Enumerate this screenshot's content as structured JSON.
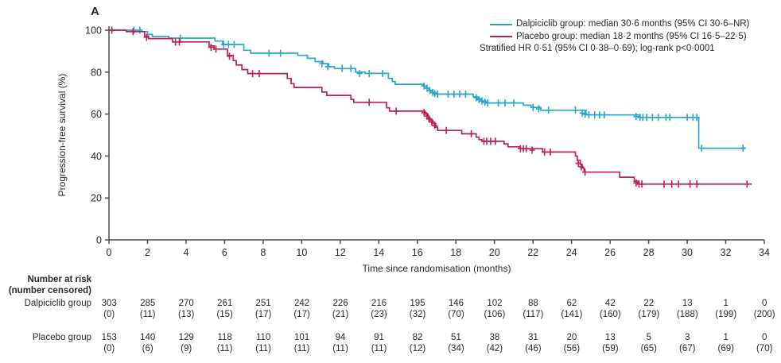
{
  "panel_label": "A",
  "colors": {
    "dalpiciclib": "#29A7C8",
    "placebo": "#BE2056",
    "axis": "#4D4D4F",
    "text": "#2B2A29"
  },
  "legend": {
    "entries": [
      {
        "label": "Dalpiciclib group: median 30·6 months (95% CI 30·6–NR)",
        "color_key": "dalpiciclib"
      },
      {
        "label": "Placebo group: median 18·2 months (95% CI 16·5–22·5)",
        "color_key": "placebo"
      }
    ],
    "note": "Stratified HR 0·51 (95% CI 0·38–0·69); log-rank p<0·0001"
  },
  "chart_data": {
    "type": "line",
    "subtype": "kaplan-meier-step",
    "title": "",
    "xlabel": "Time since randomisation (months)",
    "ylabel": "Progression-free survival (%)",
    "xlim": [
      0,
      34
    ],
    "xticks": [
      0,
      2,
      4,
      6,
      8,
      10,
      12,
      14,
      16,
      18,
      20,
      22,
      24,
      26,
      28,
      30,
      32,
      34
    ],
    "ylim": [
      0,
      100
    ],
    "yticks": [
      0,
      20,
      40,
      60,
      80,
      100
    ],
    "grid": false,
    "legend_position": "top-right",
    "series": [
      {
        "name": "Dalpiciclib group",
        "color": "#29A7C8",
        "median_months": "30·6",
        "steps": [
          [
            0,
            100
          ],
          [
            1.7,
            99.3
          ],
          [
            2.0,
            98
          ],
          [
            2.25,
            97
          ],
          [
            3.1,
            96.2
          ],
          [
            5.5,
            94.8
          ],
          [
            5.9,
            93.2
          ],
          [
            7.0,
            90.4
          ],
          [
            7.35,
            89
          ],
          [
            9.8,
            88
          ],
          [
            10.3,
            86.6
          ],
          [
            10.7,
            85
          ],
          [
            11.1,
            84
          ],
          [
            11.4,
            82.6
          ],
          [
            11.7,
            81.7
          ],
          [
            12.8,
            80
          ],
          [
            13.3,
            79.4
          ],
          [
            14.5,
            77
          ],
          [
            14.7,
            75.5
          ],
          [
            14.85,
            74.2
          ],
          [
            16.3,
            73.4
          ],
          [
            16.45,
            72.3
          ],
          [
            16.6,
            71.2
          ],
          [
            16.75,
            70.3
          ],
          [
            16.95,
            69.5
          ],
          [
            18.9,
            68.3
          ],
          [
            19.1,
            67.3
          ],
          [
            19.3,
            66.2
          ],
          [
            19.55,
            65.3
          ],
          [
            21.5,
            64.2
          ],
          [
            21.9,
            63.2
          ],
          [
            22.4,
            61.8
          ],
          [
            24.75,
            59.6
          ],
          [
            27.5,
            58.4
          ],
          [
            30.6,
            43.7
          ]
        ],
        "end": 33.05,
        "censors": [
          [
            1.3,
            100
          ],
          [
            1.6,
            100
          ],
          [
            3.7,
            96.2
          ],
          [
            5.95,
            93.2
          ],
          [
            6.2,
            93.2
          ],
          [
            6.5,
            93.2
          ],
          [
            8.3,
            89
          ],
          [
            8.9,
            89
          ],
          [
            11.05,
            84
          ],
          [
            11.35,
            82.6
          ],
          [
            12.1,
            81.7
          ],
          [
            12.55,
            81.7
          ],
          [
            13.0,
            79.4
          ],
          [
            13.5,
            79.4
          ],
          [
            14.2,
            79.4
          ],
          [
            16.35,
            73.4
          ],
          [
            16.5,
            72.3
          ],
          [
            16.65,
            71.2
          ],
          [
            16.8,
            70.3
          ],
          [
            16.9,
            69.8
          ],
          [
            17.05,
            69.5
          ],
          [
            17.6,
            69.5
          ],
          [
            17.9,
            69.5
          ],
          [
            18.2,
            69.5
          ],
          [
            18.5,
            69.5
          ],
          [
            19.05,
            67.8
          ],
          [
            19.2,
            66.8
          ],
          [
            19.35,
            66.2
          ],
          [
            19.5,
            65.6
          ],
          [
            19.65,
            65.3
          ],
          [
            20.2,
            65.3
          ],
          [
            20.55,
            65.3
          ],
          [
            21.0,
            65.3
          ],
          [
            22.0,
            63.2
          ],
          [
            22.3,
            62.5
          ],
          [
            22.8,
            61.8
          ],
          [
            24.2,
            61.8
          ],
          [
            24.55,
            60.5
          ],
          [
            24.7,
            59.9
          ],
          [
            24.9,
            59.6
          ],
          [
            25.2,
            59.6
          ],
          [
            25.45,
            59.6
          ],
          [
            25.7,
            59.6
          ],
          [
            27.35,
            58.8
          ],
          [
            27.55,
            58.4
          ],
          [
            27.7,
            58.4
          ],
          [
            27.9,
            58.4
          ],
          [
            28.2,
            58.4
          ],
          [
            28.5,
            58.4
          ],
          [
            28.9,
            58.4
          ],
          [
            29.1,
            58.4
          ],
          [
            30.0,
            58.4
          ],
          [
            30.3,
            58.4
          ],
          [
            30.5,
            58.4
          ],
          [
            30.75,
            43.7
          ],
          [
            32.9,
            43.7
          ]
        ]
      },
      {
        "name": "Placebo group",
        "color": "#BE2056",
        "median_months": "18·2",
        "steps": [
          [
            0,
            100
          ],
          [
            0.9,
            99.3
          ],
          [
            1.85,
            97.2
          ],
          [
            2.05,
            96
          ],
          [
            3.3,
            94.4
          ],
          [
            5.2,
            92.5
          ],
          [
            5.45,
            91
          ],
          [
            6.15,
            88
          ],
          [
            6.45,
            85.5
          ],
          [
            6.6,
            83.4
          ],
          [
            6.9,
            81.2
          ],
          [
            7.2,
            79.3
          ],
          [
            9.25,
            77
          ],
          [
            9.45,
            74.5
          ],
          [
            9.6,
            72.7
          ],
          [
            11.05,
            70.5
          ],
          [
            11.3,
            68.9
          ],
          [
            12.55,
            67
          ],
          [
            12.7,
            65.6
          ],
          [
            14.4,
            63
          ],
          [
            14.55,
            61.4
          ],
          [
            16.4,
            60
          ],
          [
            16.55,
            58.5
          ],
          [
            16.65,
            57
          ],
          [
            16.8,
            55.5
          ],
          [
            16.95,
            53.8
          ],
          [
            17.05,
            52.2
          ],
          [
            18.3,
            50.6
          ],
          [
            19.05,
            49
          ],
          [
            19.2,
            47.8
          ],
          [
            19.35,
            47
          ],
          [
            20.5,
            45.8
          ],
          [
            20.7,
            44.4
          ],
          [
            21.3,
            43.5
          ],
          [
            22.5,
            41.9
          ],
          [
            24.2,
            40
          ],
          [
            24.3,
            38
          ],
          [
            24.45,
            36
          ],
          [
            24.55,
            34.3
          ],
          [
            24.65,
            32.3
          ],
          [
            26.5,
            29.9
          ],
          [
            27.25,
            28
          ],
          [
            27.45,
            26.6
          ]
        ],
        "end": 33.35,
        "censors": [
          [
            0.15,
            100
          ],
          [
            1.25,
            99.3
          ],
          [
            1.95,
            96.6
          ],
          [
            3.45,
            94.4
          ],
          [
            3.65,
            94.4
          ],
          [
            5.3,
            91.8
          ],
          [
            5.55,
            91
          ],
          [
            6.25,
            87.6
          ],
          [
            7.45,
            79.3
          ],
          [
            7.8,
            79.3
          ],
          [
            13.5,
            65.6
          ],
          [
            14.9,
            61.4
          ],
          [
            16.35,
            60.7
          ],
          [
            16.5,
            59
          ],
          [
            16.6,
            57.7
          ],
          [
            16.75,
            56.2
          ],
          [
            16.9,
            54.6
          ],
          [
            17.5,
            52.2
          ],
          [
            18.8,
            50.6
          ],
          [
            19.45,
            47
          ],
          [
            19.6,
            47
          ],
          [
            19.8,
            47
          ],
          [
            20.05,
            47
          ],
          [
            21.35,
            43.5
          ],
          [
            21.5,
            43.5
          ],
          [
            21.65,
            43.5
          ],
          [
            21.95,
            42.8
          ],
          [
            22.6,
            41.9
          ],
          [
            22.9,
            41.9
          ],
          [
            24.35,
            36.5
          ],
          [
            24.5,
            34.8
          ],
          [
            24.7,
            32.3
          ],
          [
            27.35,
            27.2
          ],
          [
            27.5,
            26.6
          ],
          [
            27.65,
            26.6
          ],
          [
            28.8,
            26.6
          ],
          [
            29.2,
            26.6
          ],
          [
            29.55,
            26.6
          ],
          [
            30.15,
            26.6
          ],
          [
            30.5,
            26.6
          ],
          [
            33.1,
            26.6
          ]
        ]
      }
    ]
  },
  "risk_table": {
    "header_line1": "Number at risk",
    "header_line2": "(number censored)",
    "months": [
      0,
      2,
      4,
      6,
      8,
      10,
      12,
      14,
      16,
      18,
      20,
      22,
      24,
      26,
      28,
      30,
      32,
      34
    ],
    "rows": [
      {
        "label": "Dalpiciclib group",
        "at_risk": [
          303,
          285,
          270,
          261,
          251,
          242,
          226,
          216,
          195,
          146,
          102,
          88,
          62,
          42,
          22,
          13,
          1,
          0
        ],
        "censored": [
          0,
          11,
          13,
          15,
          17,
          17,
          21,
          23,
          32,
          70,
          106,
          117,
          141,
          160,
          179,
          188,
          199,
          200
        ]
      },
      {
        "label": "Placebo group",
        "at_risk": [
          153,
          140,
          129,
          118,
          110,
          101,
          94,
          91,
          82,
          51,
          38,
          31,
          20,
          13,
          5,
          3,
          1,
          0
        ],
        "censored": [
          0,
          6,
          9,
          11,
          11,
          11,
          11,
          11,
          12,
          34,
          42,
          46,
          56,
          59,
          65,
          67,
          69,
          70
        ]
      }
    ]
  }
}
